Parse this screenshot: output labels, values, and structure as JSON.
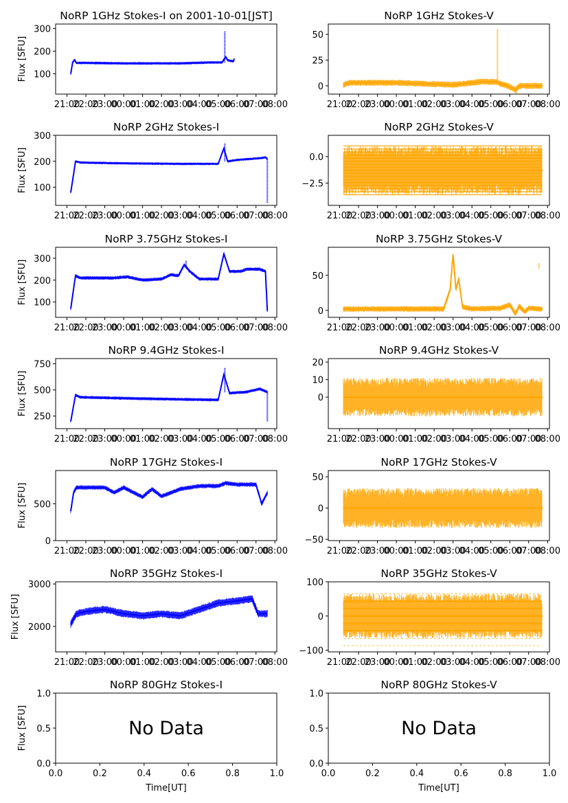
{
  "figure": {
    "x_label": "Time[UT]",
    "y_label": "Flux [SFU]",
    "time_ticks": [
      "21:00",
      "22:00",
      "23:00",
      "00:00",
      "01:00",
      "02:00",
      "03:00",
      "04:00",
      "05:00",
      "06:00",
      "07:00",
      "08:00"
    ],
    "colors": {
      "stokes_i": "#0000ff",
      "stokes_v": "#ffa500",
      "axis": "#000000"
    }
  },
  "chart_data": [
    {
      "type": "scatter",
      "title": "NoRP 1GHz Stokes-I on 2001-10-01[JST]",
      "ylabel": "Flux [SFU]",
      "xlabel": "",
      "xlim": [
        -0.6,
        11.1
      ],
      "ylim": [
        10,
        320
      ],
      "yticks": [
        100,
        200,
        300
      ],
      "trace_start": 0.2,
      "trace_end": 8.85,
      "segments": [
        [
          0.2,
          100
        ],
        [
          0.3,
          150
        ],
        [
          0.4,
          162
        ],
        [
          0.5,
          148
        ],
        [
          1,
          148
        ],
        [
          3,
          146
        ],
        [
          6,
          146
        ],
        [
          7.5,
          150
        ],
        [
          8.2,
          150
        ],
        [
          8.4,
          175
        ],
        [
          8.5,
          160
        ],
        [
          8.8,
          155
        ],
        [
          8.85,
          165
        ]
      ],
      "spread": 6,
      "spikes": [
        {
          "x": 8.35,
          "from": 150,
          "to": 290
        }
      ],
      "series": [
        {
          "name": "Stokes-I",
          "values": "flux trace"
        }
      ]
    },
    {
      "type": "scatter",
      "title": "NoRP 1GHz Stokes-V",
      "ylabel": "",
      "xlabel": "",
      "xlim": [
        -0.6,
        11.1
      ],
      "ylim": [
        -8,
        60
      ],
      "yticks": [
        0,
        25,
        50
      ],
      "trace_start": 0.2,
      "trace_end": 10.7,
      "segments": [
        [
          0.2,
          1
        ],
        [
          0.5,
          3
        ],
        [
          3,
          3
        ],
        [
          6,
          1
        ],
        [
          7.5,
          4
        ],
        [
          8.3,
          4
        ],
        [
          8.5,
          2
        ],
        [
          8.9,
          0
        ],
        [
          9.3,
          -4
        ],
        [
          9.5,
          0
        ],
        [
          10.7,
          0
        ]
      ],
      "spread": 3,
      "spikes": [
        {
          "x": 8.35,
          "from": 5,
          "to": 55
        },
        {
          "x": 9.35,
          "from": -8,
          "to": 0
        }
      ],
      "series": [
        {
          "name": "Stokes-V",
          "values": "flux trace"
        }
      ]
    },
    {
      "type": "scatter",
      "title": "NoRP 2GHz Stokes-I",
      "ylabel": "Flux [SFU]",
      "xlabel": "",
      "xlim": [
        -0.6,
        11.1
      ],
      "ylim": [
        30,
        300
      ],
      "yticks": [
        100,
        200,
        300
      ],
      "trace_start": 0.2,
      "trace_end": 10.6,
      "segments": [
        [
          0.2,
          80
        ],
        [
          0.35,
          150
        ],
        [
          0.45,
          200
        ],
        [
          0.7,
          195
        ],
        [
          3,
          192
        ],
        [
          6,
          190
        ],
        [
          8,
          190
        ],
        [
          8.3,
          250
        ],
        [
          8.5,
          200
        ],
        [
          9,
          205
        ],
        [
          10.2,
          212
        ],
        [
          10.5,
          215
        ],
        [
          10.6,
          210
        ]
      ],
      "spread": 5,
      "spikes": [
        {
          "x": 8.35,
          "from": 200,
          "to": 270
        },
        {
          "x": 10.6,
          "from": 40,
          "to": 210
        }
      ],
      "series": [
        {
          "name": "Stokes-I",
          "values": "flux trace"
        }
      ]
    },
    {
      "type": "scatter",
      "title": "NoRP 2GHz Stokes-V",
      "ylabel": "",
      "xlabel": "",
      "xlim": [
        -0.6,
        11.1
      ],
      "ylim": [
        -4.6,
        2.0
      ],
      "yticks": [
        -2.5,
        0.0
      ],
      "tick_labels": [
        "−2.5",
        "0.0"
      ],
      "trace_start": 0.2,
      "trace_end": 10.7,
      "segments": [
        [
          0.2,
          -1.3
        ],
        [
          10.7,
          -1.3
        ]
      ],
      "spread": 2.3,
      "banded": true,
      "spikes": [],
      "series": [
        {
          "name": "Stokes-V",
          "values": "flux trace"
        }
      ]
    },
    {
      "type": "scatter",
      "title": "NoRP 3.75GHz Stokes-I",
      "ylabel": "Flux [SFU]",
      "xlabel": "",
      "xlim": [
        -0.6,
        11.1
      ],
      "ylim": [
        30,
        350
      ],
      "yticks": [
        100,
        200,
        300
      ],
      "trace_start": 0.2,
      "trace_end": 10.6,
      "segments": [
        [
          0.2,
          70
        ],
        [
          0.35,
          160
        ],
        [
          0.45,
          220
        ],
        [
          0.7,
          210
        ],
        [
          2.5,
          210
        ],
        [
          3.2,
          215
        ],
        [
          4,
          200
        ],
        [
          5,
          205
        ],
        [
          5.5,
          225
        ],
        [
          5.9,
          220
        ],
        [
          6.2,
          270
        ],
        [
          6.5,
          240
        ],
        [
          7,
          205
        ],
        [
          8,
          205
        ],
        [
          8.3,
          320
        ],
        [
          8.6,
          240
        ],
        [
          9.2,
          240
        ],
        [
          9.5,
          250
        ],
        [
          10.2,
          250
        ],
        [
          10.5,
          240
        ],
        [
          10.6,
          60
        ]
      ],
      "spread": 8,
      "spikes": [
        {
          "x": 6.3,
          "from": 260,
          "to": 290
        }
      ],
      "series": [
        {
          "name": "Stokes-I",
          "values": "flux trace"
        }
      ]
    },
    {
      "type": "scatter",
      "title": "NoRP 3.75GHz Stokes-V",
      "ylabel": "",
      "xlabel": "",
      "xlim": [
        -0.6,
        11.1
      ],
      "ylim": [
        -10,
        90
      ],
      "yticks": [
        0,
        50
      ],
      "trace_start": 0.2,
      "trace_end": 10.7,
      "segments": [
        [
          0.2,
          2
        ],
        [
          5.5,
          2
        ],
        [
          5.85,
          30
        ],
        [
          6.0,
          80
        ],
        [
          6.15,
          30
        ],
        [
          6.3,
          45
        ],
        [
          6.5,
          5
        ],
        [
          7,
          2
        ],
        [
          8.5,
          3
        ],
        [
          9.0,
          8
        ],
        [
          9.3,
          -5
        ],
        [
          9.5,
          6
        ],
        [
          9.8,
          -2
        ],
        [
          10,
          3
        ],
        [
          10.7,
          2
        ]
      ],
      "spread": 4,
      "spikes": [
        {
          "x": 10.55,
          "from": 60,
          "to": 67
        }
      ],
      "series": [
        {
          "name": "Stokes-V",
          "values": "flux trace"
        }
      ]
    },
    {
      "type": "scatter",
      "title": "NoRP 9.4GHz Stokes-I",
      "ylabel": "Flux [SFU]",
      "xlabel": "",
      "xlim": [
        -0.6,
        11.1
      ],
      "ylim": [
        130,
        800
      ],
      "yticks": [
        250,
        500,
        750
      ],
      "trace_start": 0.2,
      "trace_end": 10.6,
      "segments": [
        [
          0.2,
          200
        ],
        [
          0.35,
          350
        ],
        [
          0.45,
          450
        ],
        [
          0.7,
          430
        ],
        [
          2,
          425
        ],
        [
          3,
          420
        ],
        [
          6,
          410
        ],
        [
          8,
          405
        ],
        [
          8.3,
          650
        ],
        [
          8.6,
          470
        ],
        [
          9.5,
          480
        ],
        [
          10.2,
          510
        ],
        [
          10.6,
          480
        ]
      ],
      "spread": 15,
      "spikes": [
        {
          "x": 8.35,
          "from": 480,
          "to": 710
        },
        {
          "x": 10.6,
          "from": 200,
          "to": 480
        }
      ],
      "series": [
        {
          "name": "Stokes-I",
          "values": "flux trace"
        }
      ]
    },
    {
      "type": "scatter",
      "title": "NoRP 9.4GHz Stokes-V",
      "ylabel": "",
      "xlabel": "",
      "xlim": [
        -0.6,
        11.1
      ],
      "ylim": [
        -18,
        22
      ],
      "yticks": [
        0,
        10,
        20
      ],
      "tick_labels": [
        "0",
        "10",
        "20"
      ],
      "trace_start": 0.2,
      "trace_end": 10.7,
      "segments": [
        [
          0.2,
          0
        ],
        [
          10.7,
          0
        ]
      ],
      "spread": 11,
      "spikes": [],
      "series": [
        {
          "name": "Stokes-V",
          "values": "flux trace"
        }
      ]
    },
    {
      "type": "scatter",
      "title": "NoRP 17GHz Stokes-I",
      "ylabel": "Flux [SFU]",
      "xlabel": "",
      "xlim": [
        -0.6,
        11.1
      ],
      "ylim": [
        0,
        950
      ],
      "yticks": [
        0,
        500
      ],
      "trace_start": 0.2,
      "trace_end": 10.6,
      "segments": [
        [
          0.2,
          400
        ],
        [
          0.35,
          650
        ],
        [
          0.5,
          720
        ],
        [
          2,
          720
        ],
        [
          2.5,
          650
        ],
        [
          3,
          720
        ],
        [
          4,
          590
        ],
        [
          4.5,
          700
        ],
        [
          5,
          600
        ],
        [
          6,
          700
        ],
        [
          7,
          740
        ],
        [
          8,
          740
        ],
        [
          8.4,
          780
        ],
        [
          9,
          760
        ],
        [
          10,
          760
        ],
        [
          10.3,
          500
        ],
        [
          10.6,
          650
        ]
      ],
      "spread": 30,
      "spikes": [],
      "series": [
        {
          "name": "Stokes-I",
          "values": "flux trace"
        }
      ]
    },
    {
      "type": "scatter",
      "title": "NoRP 17GHz Stokes-V",
      "ylabel": "",
      "xlabel": "",
      "xlim": [
        -0.6,
        11.1
      ],
      "ylim": [
        -52,
        60
      ],
      "yticks": [
        -50,
        0,
        50
      ],
      "tick_labels": [
        "−50",
        "0",
        "50"
      ],
      "trace_start": 0.2,
      "trace_end": 10.7,
      "segments": [
        [
          0.2,
          0
        ],
        [
          10.7,
          0
        ]
      ],
      "spread": 32,
      "spikes": [],
      "series": [
        {
          "name": "Stokes-V",
          "values": "flux trace"
        }
      ]
    },
    {
      "type": "scatter",
      "title": "NoRP 35GHz Stokes-I",
      "ylabel": "Flux [SFU]",
      "xlabel": "",
      "xlim": [
        -0.6,
        11.1
      ],
      "ylim": [
        1400,
        3050
      ],
      "yticks": [
        2000,
        3000
      ],
      "trace_start": 0.2,
      "trace_end": 10.6,
      "segments": [
        [
          0.2,
          2050
        ],
        [
          0.5,
          2300
        ],
        [
          1,
          2350
        ],
        [
          2,
          2400
        ],
        [
          3,
          2300
        ],
        [
          4,
          2250
        ],
        [
          5,
          2300
        ],
        [
          6,
          2250
        ],
        [
          7,
          2400
        ],
        [
          8,
          2550
        ],
        [
          9,
          2600
        ],
        [
          9.8,
          2650
        ],
        [
          10.1,
          2300
        ],
        [
          10.6,
          2300
        ]
      ],
      "spread": 90,
      "spikes": [],
      "series": [
        {
          "name": "Stokes-I",
          "values": "flux trace"
        }
      ]
    },
    {
      "type": "scatter",
      "title": "NoRP 35GHz Stokes-V",
      "ylabel": "",
      "xlabel": "",
      "xlim": [
        -0.6,
        11.1
      ],
      "ylim": [
        -105,
        100
      ],
      "yticks": [
        -100,
        0,
        100
      ],
      "tick_labels": [
        "−100",
        "0",
        "100"
      ],
      "trace_start": 0.2,
      "trace_end": 10.7,
      "segments": [
        [
          0.2,
          0
        ],
        [
          10.7,
          0
        ]
      ],
      "spread": 65,
      "levels": [
        -87,
        -66,
        -43,
        -22,
        0,
        22,
        43,
        65
      ],
      "spikes": [],
      "series": [
        {
          "name": "Stokes-V",
          "values": "flux trace"
        }
      ]
    },
    {
      "type": "scatter",
      "title": "NoRP 80GHz Stokes-I",
      "ylabel": "Flux [SFU]",
      "xlabel": "Time[UT]",
      "xlim": [
        0,
        1
      ],
      "ylim": [
        0,
        1
      ],
      "yticks": [
        0.0,
        0.5,
        1.0
      ],
      "xticks": [
        0.0,
        0.2,
        0.4,
        0.6,
        0.8,
        1.0
      ],
      "no_data_text": "No Data",
      "series": []
    },
    {
      "type": "scatter",
      "title": "NoRP 80GHz Stokes-V",
      "ylabel": "",
      "xlabel": "Time[UT]",
      "xlim": [
        0,
        1
      ],
      "ylim": [
        0,
        1
      ],
      "yticks": [
        0.0,
        0.5,
        1.0
      ],
      "xticks": [
        0.0,
        0.2,
        0.4,
        0.6,
        0.8,
        1.0
      ],
      "no_data_text": "No Data",
      "series": []
    }
  ]
}
